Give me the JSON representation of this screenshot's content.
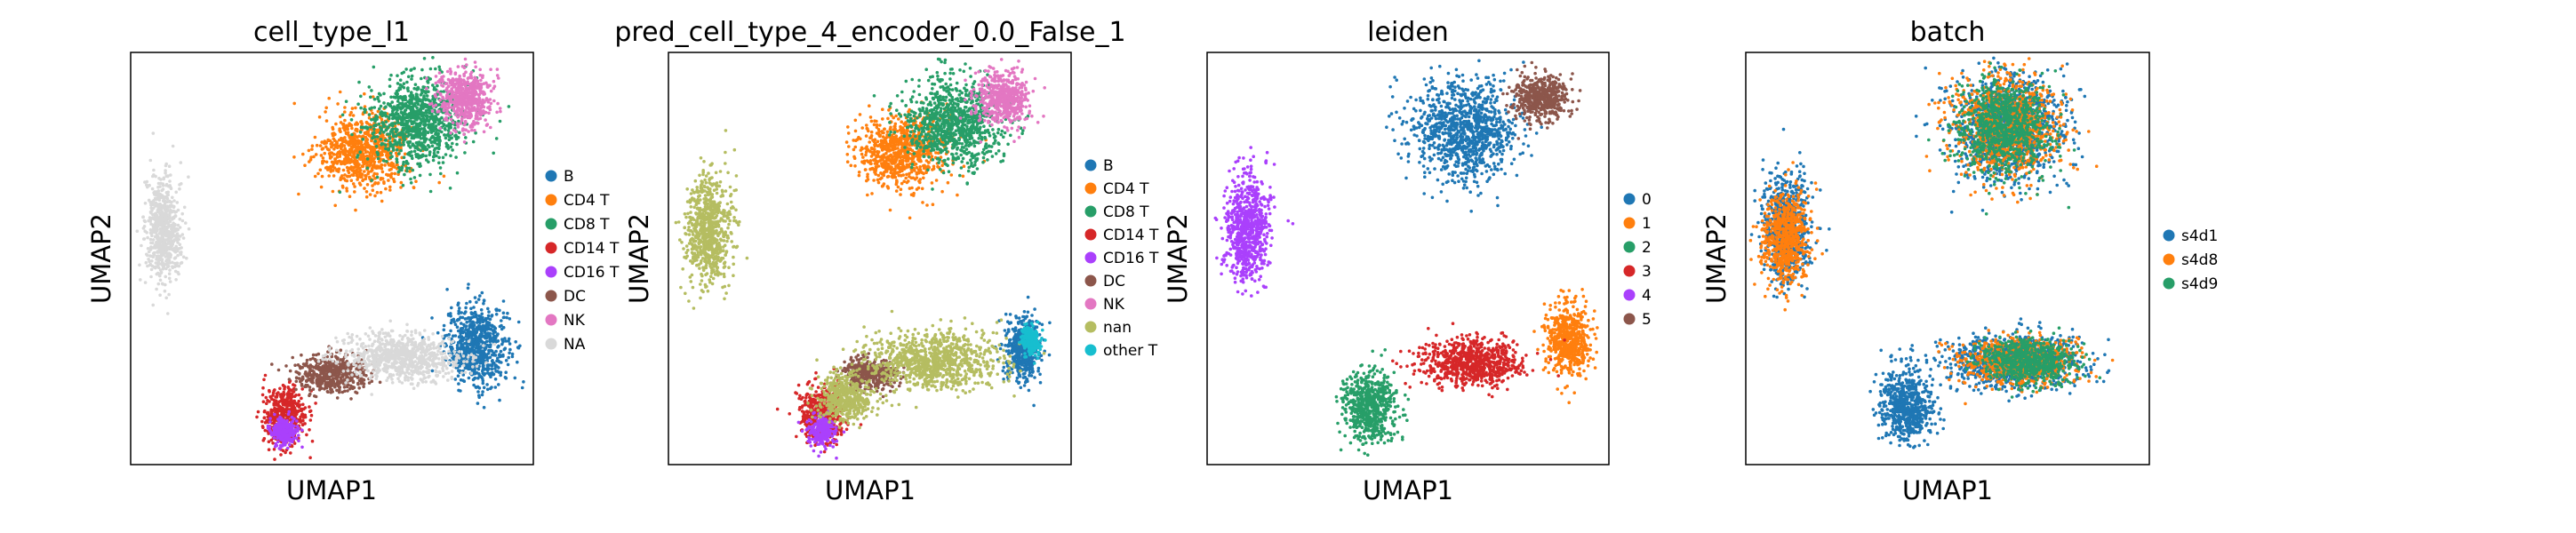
{
  "figure": {
    "panels": [
      {
        "title": "cell_type_l1",
        "xlabel": "UMAP1",
        "ylabel": "UMAP2",
        "legend": [
          {
            "label": "B",
            "color": "#1f77b4"
          },
          {
            "label": "CD4 T",
            "color": "#ff7f0e"
          },
          {
            "label": "CD8 T",
            "color": "#279e68"
          },
          {
            "label": "CD14 T",
            "color": "#d62728"
          },
          {
            "label": "CD16 T",
            "color": "#aa40fc"
          },
          {
            "label": "DC",
            "color": "#8c564b"
          },
          {
            "label": "NK",
            "color": "#e377c2"
          },
          {
            "label": "NA",
            "color": "#d9d9d9"
          }
        ]
      },
      {
        "title": "pred_cell_type_4_encoder_0.0_False_1",
        "xlabel": "UMAP1",
        "ylabel": "UMAP2",
        "legend": [
          {
            "label": "B",
            "color": "#1f77b4"
          },
          {
            "label": "CD4 T",
            "color": "#ff7f0e"
          },
          {
            "label": "CD8 T",
            "color": "#279e68"
          },
          {
            "label": "CD14 T",
            "color": "#d62728"
          },
          {
            "label": "CD16 T",
            "color": "#aa40fc"
          },
          {
            "label": "DC",
            "color": "#8c564b"
          },
          {
            "label": "NK",
            "color": "#e377c2"
          },
          {
            "label": "nan",
            "color": "#b5bd61"
          },
          {
            "label": "other T",
            "color": "#17becf"
          }
        ]
      },
      {
        "title": "leiden",
        "xlabel": "UMAP1",
        "ylabel": "UMAP2",
        "legend": [
          {
            "label": "0",
            "color": "#1f77b4"
          },
          {
            "label": "1",
            "color": "#ff7f0e"
          },
          {
            "label": "2",
            "color": "#279e68"
          },
          {
            "label": "3",
            "color": "#d62728"
          },
          {
            "label": "4",
            "color": "#aa40fc"
          },
          {
            "label": "5",
            "color": "#8c564b"
          }
        ]
      },
      {
        "title": "batch",
        "xlabel": "UMAP1",
        "ylabel": "UMAP2",
        "legend": [
          {
            "label": "s4d1",
            "color": "#1f77b4"
          },
          {
            "label": "s4d8",
            "color": "#ff7f0e"
          },
          {
            "label": "s4d9",
            "color": "#279e68"
          }
        ]
      }
    ]
  },
  "chart_data": [
    {
      "type": "scatter",
      "title": "cell_type_l1",
      "xlabel": "UMAP1",
      "ylabel": "UMAP2",
      "ticks": "none",
      "grid": false,
      "legend_position": "right",
      "series": [
        {
          "name": "B",
          "color": "#1f77b4",
          "clusters": [
            [
              0.86,
              0.29,
              0.07,
              0.09
            ]
          ]
        },
        {
          "name": "CD4 T",
          "color": "#ff7f0e",
          "clusters": [
            [
              0.58,
              0.76,
              0.1,
              0.08
            ]
          ]
        },
        {
          "name": "CD8 T",
          "color": "#279e68",
          "clusters": [
            [
              0.71,
              0.83,
              0.11,
              0.1
            ]
          ]
        },
        {
          "name": "CD14 T",
          "color": "#d62728",
          "clusters": [
            [
              0.38,
              0.12,
              0.05,
              0.06
            ]
          ]
        },
        {
          "name": "CD16 T",
          "color": "#aa40fc",
          "clusters": [
            [
              0.38,
              0.08,
              0.03,
              0.03
            ]
          ]
        },
        {
          "name": "DC",
          "color": "#8c564b",
          "clusters": [
            [
              0.5,
              0.22,
              0.08,
              0.04
            ]
          ]
        },
        {
          "name": "NK",
          "color": "#e377c2",
          "clusters": [
            [
              0.83,
              0.89,
              0.06,
              0.06
            ]
          ]
        },
        {
          "name": "NA",
          "color": "#d9d9d9",
          "clusters": [
            [
              0.08,
              0.57,
              0.04,
              0.11
            ],
            [
              0.67,
              0.26,
              0.13,
              0.05
            ]
          ]
        }
      ]
    },
    {
      "type": "scatter",
      "title": "pred_cell_type_4_encoder_0.0_False_1",
      "xlabel": "UMAP1",
      "ylabel": "UMAP2",
      "ticks": "none",
      "grid": false,
      "legend_position": "right",
      "series": [
        {
          "name": "B",
          "color": "#1f77b4",
          "clusters": [
            [
              0.88,
              0.28,
              0.04,
              0.07
            ]
          ]
        },
        {
          "name": "CD4 T",
          "color": "#ff7f0e",
          "clusters": [
            [
              0.58,
              0.76,
              0.1,
              0.08
            ]
          ]
        },
        {
          "name": "CD8 T",
          "color": "#279e68",
          "clusters": [
            [
              0.71,
              0.83,
              0.11,
              0.1
            ]
          ]
        },
        {
          "name": "CD14 T",
          "color": "#d62728",
          "clusters": [
            [
              0.38,
              0.12,
              0.05,
              0.06
            ]
          ]
        },
        {
          "name": "CD16 T",
          "color": "#aa40fc",
          "clusters": [
            [
              0.38,
              0.08,
              0.03,
              0.03
            ]
          ]
        },
        {
          "name": "DC",
          "color": "#8c564b",
          "clusters": [
            [
              0.5,
              0.22,
              0.06,
              0.03
            ]
          ]
        },
        {
          "name": "NK",
          "color": "#e377c2",
          "clusters": [
            [
              0.83,
              0.89,
              0.06,
              0.06
            ]
          ]
        },
        {
          "name": "nan",
          "color": "#b5bd61",
          "clusters": [
            [
              0.1,
              0.57,
              0.05,
              0.12
            ],
            [
              0.66,
              0.25,
              0.15,
              0.06
            ],
            [
              0.44,
              0.16,
              0.06,
              0.05
            ]
          ]
        },
        {
          "name": "other T",
          "color": "#17becf",
          "clusters": [
            [
              0.9,
              0.3,
              0.02,
              0.03
            ]
          ]
        }
      ]
    },
    {
      "type": "scatter",
      "title": "leiden",
      "xlabel": "UMAP1",
      "ylabel": "UMAP2",
      "ticks": "none",
      "grid": false,
      "legend_position": "right",
      "series": [
        {
          "name": "0",
          "color": "#1f77b4",
          "clusters": [
            [
              0.64,
              0.81,
              0.12,
              0.11
            ]
          ]
        },
        {
          "name": "1",
          "color": "#ff7f0e",
          "clusters": [
            [
              0.9,
              0.3,
              0.05,
              0.08
            ]
          ]
        },
        {
          "name": "2",
          "color": "#279e68",
          "clusters": [
            [
              0.4,
              0.14,
              0.06,
              0.08
            ]
          ]
        },
        {
          "name": "3",
          "color": "#d62728",
          "clusters": [
            [
              0.66,
              0.25,
              0.12,
              0.05
            ]
          ]
        },
        {
          "name": "4",
          "color": "#aa40fc",
          "clusters": [
            [
              0.1,
              0.57,
              0.05,
              0.12
            ]
          ]
        },
        {
          "name": "5",
          "color": "#8c564b",
          "clusters": [
            [
              0.83,
              0.89,
              0.06,
              0.05
            ]
          ]
        }
      ]
    },
    {
      "type": "scatter",
      "title": "batch",
      "xlabel": "UMAP1",
      "ylabel": "UMAP2",
      "ticks": "none",
      "grid": false,
      "legend_position": "right",
      "series": [
        {
          "name": "s4d1",
          "color": "#1f77b4",
          "clusters": [
            [
              0.65,
              0.82,
              0.13,
              0.12
            ],
            [
              0.1,
              0.57,
              0.05,
              0.12
            ],
            [
              0.66,
              0.25,
              0.15,
              0.06
            ],
            [
              0.4,
              0.14,
              0.06,
              0.08
            ]
          ]
        },
        {
          "name": "s4d8",
          "color": "#ff7f0e",
          "clusters": [
            [
              0.65,
              0.82,
              0.11,
              0.11
            ],
            [
              0.1,
              0.55,
              0.05,
              0.1
            ],
            [
              0.68,
              0.25,
              0.12,
              0.05
            ]
          ]
        },
        {
          "name": "s4d9",
          "color": "#279e68",
          "clusters": [
            [
              0.64,
              0.82,
              0.1,
              0.1
            ],
            [
              0.7,
              0.25,
              0.1,
              0.05
            ]
          ]
        }
      ]
    }
  ]
}
